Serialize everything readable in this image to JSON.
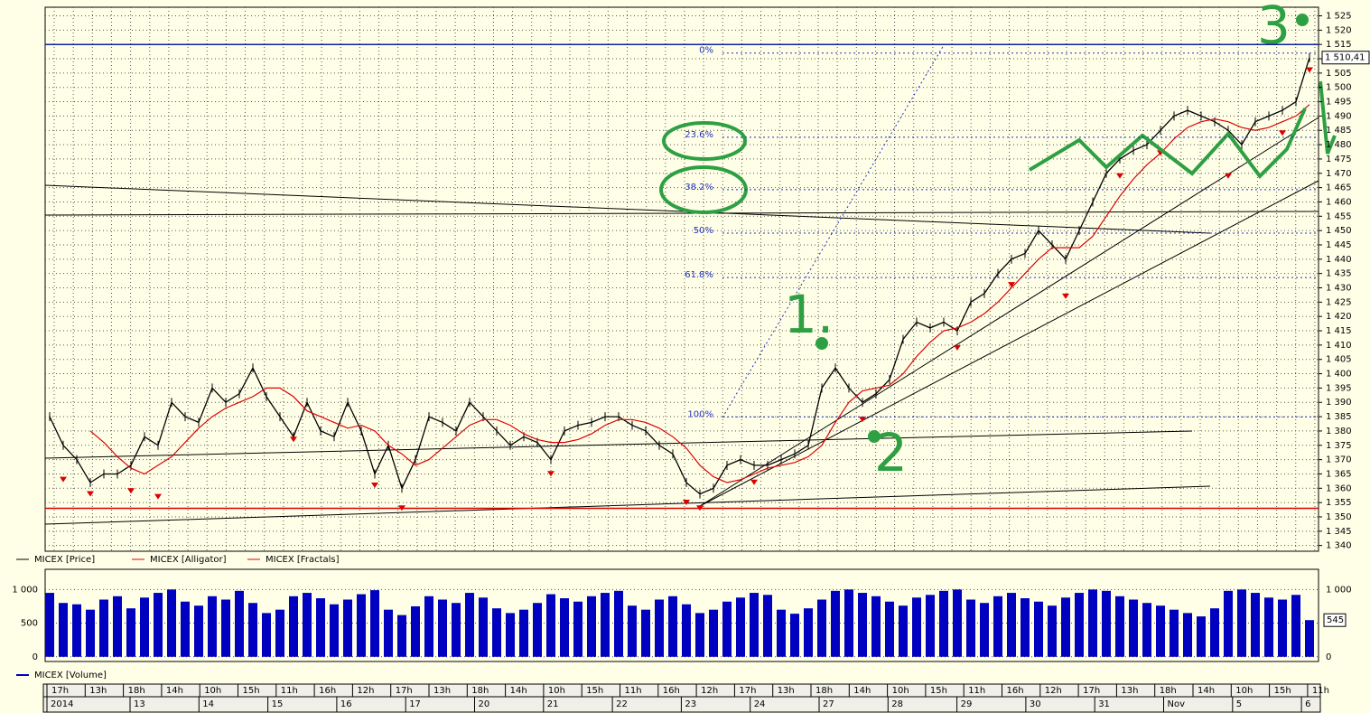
{
  "chart_data": [
    {
      "type": "line",
      "ylim": [
        1338,
        1528
      ],
      "yticks": [
        {
          "value": 1340,
          "label": "1 340"
        },
        {
          "value": 1345,
          "label": "1 345"
        },
        {
          "value": 1350,
          "label": "1 350"
        },
        {
          "value": 1355,
          "label": "1 355"
        },
        {
          "value": 1360,
          "label": "1 360"
        },
        {
          "value": 1365,
          "label": "1 365"
        },
        {
          "value": 1370,
          "label": "1 370"
        },
        {
          "value": 1375,
          "label": "1 375"
        },
        {
          "value": 1380,
          "label": "1 380"
        },
        {
          "value": 1385,
          "label": "1 385"
        },
        {
          "value": 1390,
          "label": "1 390"
        },
        {
          "value": 1395,
          "label": "1 395"
        },
        {
          "value": 1400,
          "label": "1 400"
        },
        {
          "value": 1405,
          "label": "1 405"
        },
        {
          "value": 1410,
          "label": "1 410"
        },
        {
          "value": 1415,
          "label": "1 415"
        },
        {
          "value": 1420,
          "label": "1 420"
        },
        {
          "value": 1425,
          "label": "1 425"
        },
        {
          "value": 1430,
          "label": "1 430"
        },
        {
          "value": 1435,
          "label": "1 435"
        },
        {
          "value": 1440,
          "label": "1 440"
        },
        {
          "value": 1445,
          "label": "1 445"
        },
        {
          "value": 1450,
          "label": "1 450"
        },
        {
          "value": 1455,
          "label": "1 455"
        },
        {
          "value": 1460,
          "label": "1 460"
        },
        {
          "value": 1465,
          "label": "1 465"
        },
        {
          "value": 1470,
          "label": "1 470"
        },
        {
          "value": 1475,
          "label": "1 475"
        },
        {
          "value": 1480,
          "label": "1 480"
        },
        {
          "value": 1485,
          "label": "1 485"
        },
        {
          "value": 1490,
          "label": "1 490"
        },
        {
          "value": 1495,
          "label": "1 495"
        },
        {
          "value": 1500,
          "label": "1 500"
        },
        {
          "value": 1505,
          "label": "1 505"
        },
        {
          "value": 1510,
          "label": "1 510"
        },
        {
          "value": 1515,
          "label": "1 515"
        },
        {
          "value": 1520,
          "label": "1 520"
        },
        {
          "value": 1525,
          "label": "1 525"
        }
      ],
      "grid": true,
      "series": [
        {
          "name": "MICEX [Price]",
          "color": "#000000",
          "values": [
            1385,
            1375,
            1370,
            1362,
            1365,
            1365,
            1368,
            1378,
            1375,
            1390,
            1385,
            1383,
            1395,
            1390,
            1393,
            1402,
            1392,
            1385,
            1378,
            1390,
            1380,
            1378,
            1390,
            1380,
            1365,
            1375,
            1360,
            1370,
            1385,
            1383,
            1380,
            1390,
            1385,
            1380,
            1375,
            1378,
            1376,
            1370,
            1380,
            1382,
            1383,
            1385,
            1385,
            1382,
            1380,
            1375,
            1372,
            1362,
            1358,
            1360,
            1368,
            1370,
            1368,
            1368,
            1370,
            1372,
            1375,
            1395,
            1402,
            1395,
            1390,
            1393,
            1398,
            1412,
            1418,
            1416,
            1418,
            1415,
            1425,
            1428,
            1435,
            1440,
            1442,
            1450,
            1445,
            1440,
            1450,
            1460,
            1470,
            1475,
            1478,
            1480,
            1485,
            1490,
            1492,
            1490,
            1488,
            1485,
            1480,
            1488,
            1490,
            1492,
            1495,
            1510.41
          ]
        },
        {
          "name": "MICEX [Alligator]",
          "color": "#dd0000",
          "values": [
            null,
            null,
            null,
            1380,
            1376,
            1371,
            1367,
            1365,
            1368,
            1371,
            1376,
            1381,
            1385,
            1388,
            1390,
            1392,
            1395,
            1395,
            1392,
            1387,
            1385,
            1383,
            1381,
            1382,
            1380,
            1375,
            1372,
            1368,
            1370,
            1374,
            1378,
            1382,
            1384,
            1384,
            1382,
            1379,
            1377,
            1376,
            1376,
            1377,
            1379,
            1382,
            1384,
            1384,
            1383,
            1381,
            1378,
            1374,
            1368,
            1364,
            1362,
            1363,
            1365,
            1367,
            1368,
            1369,
            1371,
            1375,
            1383,
            1390,
            1394,
            1395,
            1396,
            1400,
            1406,
            1411,
            1415,
            1416,
            1418,
            1421,
            1425,
            1430,
            1435,
            1440,
            1444,
            1444,
            1444,
            1448,
            1455,
            1462,
            1468,
            1473,
            1477,
            1482,
            1486,
            1488,
            1489,
            1488,
            1486,
            1485,
            1486,
            1488,
            1490,
            1494
          ]
        },
        {
          "name": "MICEX [Fractals]",
          "color": "#dd0000",
          "values": [
            null,
            1364,
            null,
            1359,
            null,
            null,
            1360,
            null,
            1358,
            null,
            null,
            null,
            null,
            null,
            null,
            null,
            null,
            null,
            1378,
            null,
            null,
            null,
            null,
            null,
            1362,
            null,
            1354,
            null,
            null,
            null,
            null,
            null,
            null,
            null,
            null,
            null,
            null,
            1366,
            null,
            null,
            null,
            null,
            null,
            null,
            null,
            null,
            null,
            1356,
            1354,
            null,
            null,
            null,
            1363,
            null,
            null,
            null,
            null,
            null,
            null,
            null,
            1385,
            null,
            null,
            null,
            null,
            null,
            null,
            1410,
            null,
            null,
            null,
            1432,
            null,
            null,
            null,
            1428,
            null,
            null,
            null,
            1470,
            null,
            null,
            1478,
            null,
            null,
            null,
            null,
            1470,
            null,
            null,
            null,
            1485,
            null,
            1507
          ]
        }
      ],
      "last_price": {
        "value": 1510.41,
        "label": "1 510,41"
      },
      "hlines": [
        {
          "value": 1515,
          "color": "#1020a0"
        },
        {
          "value": 1353,
          "color": "#dd0000"
        }
      ],
      "fibonacci": [
        {
          "label": "0%",
          "value": 1512
        },
        {
          "label": "23.6%",
          "value": 1482.6
        },
        {
          "label": "38.2%",
          "value": 1464.3
        },
        {
          "label": "50%",
          "value": 1449.1
        },
        {
          "label": "61.8%",
          "value": 1433.6
        },
        {
          "label": "100%",
          "value": 1384.9
        }
      ],
      "annotations": [
        "1.",
        "2",
        "3"
      ]
    },
    {
      "type": "bar",
      "ylim": [
        -70,
        1300
      ],
      "yticks": [
        0,
        500,
        {
          "value": 1000,
          "label": "1 000"
        }
      ],
      "series": [
        {
          "name": "MICEX [Volume]",
          "color": "#0000c0",
          "values": [
            950,
            800,
            780,
            700,
            850,
            900,
            720,
            880,
            950,
            1000,
            820,
            760,
            900,
            850,
            980,
            800,
            650,
            700,
            900,
            950,
            870,
            780,
            850,
            930,
            990,
            700,
            620,
            750,
            900,
            850,
            800,
            950,
            880,
            720,
            650,
            700,
            800,
            930,
            870,
            820,
            900,
            950,
            980,
            760,
            700,
            850,
            900,
            780,
            650,
            700,
            820,
            880,
            950,
            920,
            700,
            640,
            720,
            850,
            980,
            1000,
            950,
            900,
            820,
            760,
            880,
            920,
            980,
            1000,
            850,
            800,
            900,
            950,
            870,
            820,
            760,
            880,
            950,
            1000,
            980,
            900,
            850,
            800,
            760,
            700,
            650,
            600,
            720,
            980,
            1000,
            950,
            880,
            850,
            920,
            545
          ]
        }
      ]
    }
  ],
  "time_axis": {
    "hours": [
      "17h",
      "13h",
      "18h",
      "14h",
      "10h",
      "15h",
      "11h",
      "16h",
      "12h",
      "17h",
      "13h",
      "18h",
      "14h",
      "10h",
      "15h",
      "11h",
      "16h",
      "12h",
      "17h",
      "13h",
      "18h",
      "14h",
      "10h",
      "15h",
      "11h",
      "16h",
      "12h",
      "17h",
      "13h",
      "18h",
      "14h",
      "10h",
      "15h",
      "11h"
    ],
    "dates": [
      "2014",
      "13",
      "14",
      "15",
      "16",
      "17",
      "20",
      "21",
      "22",
      "23",
      "24",
      "27",
      "28",
      "29",
      "30",
      "31",
      "Nov",
      "5",
      "6"
    ]
  }
}
